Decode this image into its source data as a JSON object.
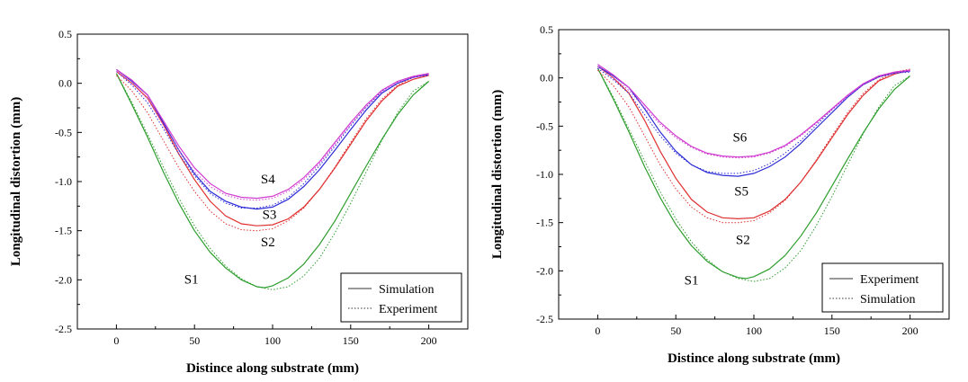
{
  "chart_data": [
    {
      "type": "line",
      "xlabel": "Distince along substrate (mm)",
      "ylabel": "Longitudinal distortion (mm)",
      "xlim": [
        -25,
        225
      ],
      "ylim": [
        -2.5,
        0.5
      ],
      "xticks": [
        0,
        50,
        100,
        150,
        200
      ],
      "yticks": [
        0.5,
        0.0,
        -0.5,
        -1.0,
        -1.5,
        -2.0,
        -2.5
      ],
      "xtick_labels": [
        "0",
        "50",
        "100",
        "150",
        "200"
      ],
      "ytick_labels": [
        "0.5",
        "0.0",
        "-0.5",
        "-1.0",
        "-1.5",
        "-2.0",
        "-2.5"
      ],
      "legend": {
        "position": "bottom-right",
        "entries": [
          {
            "label": "Simulation",
            "style": "solid"
          },
          {
            "label": "Experiment",
            "style": "dotted"
          }
        ]
      },
      "annotations": [
        {
          "text": "S4",
          "x": 97,
          "y": -1.02
        },
        {
          "text": "S3",
          "x": 98,
          "y": -1.38
        },
        {
          "text": "S2",
          "x": 97,
          "y": -1.66
        },
        {
          "text": "S1",
          "x": 48,
          "y": -2.04
        }
      ],
      "series": [
        {
          "label": "S1",
          "color": "#2e9e2e",
          "style": "solid",
          "x": [
            0,
            10,
            20,
            30,
            40,
            50,
            60,
            70,
            80,
            90,
            95,
            100,
            110,
            120,
            130,
            140,
            150,
            160,
            170,
            180,
            190,
            200
          ],
          "y": [
            0.1,
            -0.22,
            -0.55,
            -0.9,
            -1.22,
            -1.5,
            -1.72,
            -1.88,
            -2.0,
            -2.07,
            -2.08,
            -2.06,
            -1.98,
            -1.84,
            -1.64,
            -1.4,
            -1.12,
            -0.84,
            -0.57,
            -0.32,
            -0.12,
            0.02
          ]
        },
        {
          "label": "S1",
          "color": "#2e9e2e",
          "style": "dotted",
          "x": [
            0,
            10,
            20,
            30,
            40,
            50,
            60,
            70,
            80,
            90,
            100,
            110,
            120,
            130,
            140,
            150,
            160,
            170,
            180,
            190,
            200
          ],
          "y": [
            0.1,
            -0.2,
            -0.52,
            -0.85,
            -1.17,
            -1.45,
            -1.68,
            -1.86,
            -1.99,
            -2.07,
            -2.1,
            -2.07,
            -1.96,
            -1.78,
            -1.52,
            -1.22,
            -0.9,
            -0.58,
            -0.3,
            -0.08,
            0.02
          ]
        },
        {
          "label": "S2",
          "color": "#e03030",
          "style": "solid",
          "x": [
            0,
            10,
            20,
            30,
            40,
            50,
            60,
            70,
            80,
            90,
            100,
            110,
            120,
            130,
            140,
            150,
            160,
            170,
            180,
            190,
            200
          ],
          "y": [
            0.12,
            0.0,
            -0.15,
            -0.42,
            -0.72,
            -0.98,
            -1.2,
            -1.35,
            -1.43,
            -1.45,
            -1.44,
            -1.38,
            -1.26,
            -1.08,
            -0.86,
            -0.62,
            -0.38,
            -0.18,
            -0.03,
            0.04,
            0.08
          ]
        },
        {
          "label": "S2",
          "color": "#e03030",
          "style": "dotted",
          "x": [
            0,
            10,
            20,
            30,
            40,
            50,
            60,
            70,
            80,
            90,
            100,
            110,
            120,
            130,
            140,
            150,
            160,
            170,
            180,
            190,
            200
          ],
          "y": [
            0.08,
            -0.08,
            -0.3,
            -0.58,
            -0.86,
            -1.1,
            -1.3,
            -1.43,
            -1.49,
            -1.5,
            -1.48,
            -1.4,
            -1.27,
            -1.08,
            -0.85,
            -0.6,
            -0.36,
            -0.16,
            -0.02,
            0.06,
            0.09
          ]
        },
        {
          "label": "S3",
          "color": "#2c2cd6",
          "style": "solid",
          "x": [
            0,
            10,
            20,
            30,
            40,
            50,
            60,
            70,
            80,
            90,
            100,
            110,
            120,
            130,
            140,
            150,
            160,
            170,
            180,
            190,
            200
          ],
          "y": [
            0.14,
            0.02,
            -0.12,
            -0.4,
            -0.68,
            -0.92,
            -1.1,
            -1.2,
            -1.26,
            -1.28,
            -1.26,
            -1.18,
            -1.05,
            -0.88,
            -0.68,
            -0.47,
            -0.27,
            -0.1,
            0.0,
            0.06,
            0.09
          ]
        },
        {
          "label": "S3",
          "color": "#2c2cd6",
          "style": "dotted",
          "x": [
            0,
            10,
            20,
            30,
            40,
            50,
            60,
            70,
            80,
            90,
            100,
            110,
            120,
            130,
            140,
            150,
            160,
            170,
            180,
            190,
            200
          ],
          "y": [
            0.12,
            -0.02,
            -0.2,
            -0.46,
            -0.72,
            -0.94,
            -1.12,
            -1.22,
            -1.27,
            -1.27,
            -1.24,
            -1.16,
            -1.02,
            -0.84,
            -0.64,
            -0.43,
            -0.24,
            -0.08,
            0.02,
            0.07,
            0.08
          ]
        },
        {
          "label": "S4",
          "color": "#d13ad1",
          "style": "solid",
          "x": [
            0,
            10,
            20,
            30,
            40,
            50,
            60,
            70,
            80,
            90,
            100,
            110,
            120,
            130,
            140,
            150,
            160,
            170,
            180,
            190,
            200
          ],
          "y": [
            0.14,
            0.03,
            -0.12,
            -0.38,
            -0.64,
            -0.86,
            -1.02,
            -1.12,
            -1.16,
            -1.17,
            -1.15,
            -1.08,
            -0.96,
            -0.8,
            -0.6,
            -0.4,
            -0.22,
            -0.07,
            0.02,
            0.07,
            0.1
          ]
        },
        {
          "label": "S4",
          "color": "#d13ad1",
          "style": "dotted",
          "x": [
            0,
            10,
            20,
            30,
            40,
            50,
            60,
            70,
            80,
            90,
            100,
            110,
            120,
            130,
            140,
            150,
            160,
            170,
            180,
            190,
            200
          ],
          "y": [
            0.12,
            0.0,
            -0.16,
            -0.42,
            -0.68,
            -0.9,
            -1.05,
            -1.14,
            -1.18,
            -1.19,
            -1.17,
            -1.1,
            -0.98,
            -0.82,
            -0.62,
            -0.42,
            -0.24,
            -0.09,
            0.01,
            0.06,
            0.09
          ]
        }
      ]
    },
    {
      "type": "line",
      "xlabel": "Distince along substrate (mm)",
      "ylabel": "Longitudinal distortion (mm)",
      "xlim": [
        -25,
        225
      ],
      "ylim": [
        -2.5,
        0.5
      ],
      "xticks": [
        0,
        50,
        100,
        150,
        200
      ],
      "yticks": [
        0.5,
        0.0,
        -0.5,
        -1.0,
        -1.5,
        -2.0,
        -2.5
      ],
      "xtick_labels": [
        "0",
        "50",
        "100",
        "150",
        "200"
      ],
      "ytick_labels": [
        "0.5",
        "0.0",
        "-0.5",
        "-1.0",
        "-1.5",
        "-2.0",
        "-2.5"
      ],
      "legend": {
        "position": "bottom-right",
        "entries": [
          {
            "label": "Experiment",
            "style": "solid"
          },
          {
            "label": "Simulation",
            "style": "dotted"
          }
        ]
      },
      "annotations": [
        {
          "text": "S6",
          "x": 91,
          "y": -0.66
        },
        {
          "text": "S5",
          "x": 92,
          "y": -1.22
        },
        {
          "text": "S2",
          "x": 93,
          "y": -1.72
        },
        {
          "text": "S1",
          "x": 60,
          "y": -2.14
        }
      ],
      "series": [
        {
          "label": "S1",
          "color": "#2e9e2e",
          "style": "solid",
          "x": [
            0,
            10,
            20,
            30,
            40,
            50,
            60,
            70,
            80,
            90,
            95,
            100,
            110,
            120,
            130,
            140,
            150,
            160,
            170,
            180,
            190,
            200
          ],
          "y": [
            0.1,
            -0.22,
            -0.56,
            -0.92,
            -1.24,
            -1.52,
            -1.74,
            -1.9,
            -2.01,
            -2.07,
            -2.08,
            -2.06,
            -1.98,
            -1.84,
            -1.64,
            -1.4,
            -1.12,
            -0.84,
            -0.57,
            -0.32,
            -0.12,
            0.02
          ]
        },
        {
          "label": "S1",
          "color": "#2e9e2e",
          "style": "dotted",
          "x": [
            0,
            10,
            20,
            30,
            40,
            50,
            60,
            70,
            80,
            90,
            100,
            110,
            120,
            130,
            140,
            150,
            160,
            170,
            180,
            190,
            200
          ],
          "y": [
            0.1,
            -0.2,
            -0.53,
            -0.86,
            -1.18,
            -1.46,
            -1.7,
            -1.88,
            -2.01,
            -2.08,
            -2.11,
            -2.08,
            -1.97,
            -1.79,
            -1.53,
            -1.23,
            -0.9,
            -0.58,
            -0.3,
            -0.08,
            0.02
          ]
        },
        {
          "label": "S2",
          "color": "#e03030",
          "style": "solid",
          "x": [
            0,
            10,
            20,
            30,
            40,
            50,
            60,
            70,
            80,
            90,
            100,
            110,
            120,
            130,
            140,
            150,
            160,
            170,
            180,
            190,
            200
          ],
          "y": [
            0.12,
            0.0,
            -0.16,
            -0.44,
            -0.76,
            -1.04,
            -1.26,
            -1.39,
            -1.45,
            -1.46,
            -1.45,
            -1.38,
            -1.26,
            -1.08,
            -0.86,
            -0.62,
            -0.38,
            -0.18,
            -0.03,
            0.04,
            0.08
          ]
        },
        {
          "label": "S2",
          "color": "#e03030",
          "style": "dotted",
          "x": [
            0,
            10,
            20,
            30,
            40,
            50,
            60,
            70,
            80,
            90,
            100,
            110,
            120,
            130,
            140,
            150,
            160,
            170,
            180,
            190,
            200
          ],
          "y": [
            0.08,
            -0.08,
            -0.3,
            -0.6,
            -0.9,
            -1.15,
            -1.34,
            -1.45,
            -1.5,
            -1.5,
            -1.48,
            -1.4,
            -1.27,
            -1.08,
            -0.85,
            -0.6,
            -0.36,
            -0.16,
            -0.02,
            0.06,
            0.09
          ]
        },
        {
          "label": "S5",
          "color": "#2c2cd6",
          "style": "solid",
          "x": [
            0,
            10,
            20,
            30,
            40,
            50,
            60,
            70,
            80,
            90,
            100,
            110,
            120,
            130,
            140,
            150,
            160,
            170,
            180,
            190,
            200
          ],
          "y": [
            0.12,
            0.02,
            -0.1,
            -0.32,
            -0.56,
            -0.76,
            -0.9,
            -0.98,
            -1.01,
            -1.02,
            -0.99,
            -0.92,
            -0.82,
            -0.68,
            -0.52,
            -0.36,
            -0.2,
            -0.07,
            0.01,
            0.05,
            0.07
          ]
        },
        {
          "label": "S5",
          "color": "#2c2cd6",
          "style": "dotted",
          "x": [
            0,
            10,
            20,
            30,
            40,
            50,
            60,
            70,
            80,
            90,
            100,
            110,
            120,
            130,
            140,
            150,
            160,
            170,
            180,
            190,
            200
          ],
          "y": [
            0.1,
            -0.02,
            -0.16,
            -0.38,
            -0.6,
            -0.78,
            -0.9,
            -0.97,
            -0.99,
            -0.99,
            -0.96,
            -0.89,
            -0.78,
            -0.65,
            -0.49,
            -0.33,
            -0.18,
            -0.06,
            0.02,
            0.05,
            0.06
          ]
        },
        {
          "label": "S6",
          "color": "#d13ad1",
          "style": "solid",
          "x": [
            0,
            10,
            20,
            30,
            40,
            50,
            60,
            70,
            80,
            90,
            100,
            110,
            120,
            130,
            140,
            150,
            160,
            170,
            180,
            190,
            200
          ],
          "y": [
            0.14,
            0.03,
            -0.1,
            -0.28,
            -0.46,
            -0.6,
            -0.71,
            -0.78,
            -0.81,
            -0.82,
            -0.81,
            -0.77,
            -0.7,
            -0.59,
            -0.46,
            -0.32,
            -0.18,
            -0.06,
            0.02,
            0.06,
            0.08
          ]
        },
        {
          "label": "S6",
          "color": "#d13ad1",
          "style": "dotted",
          "x": [
            0,
            10,
            20,
            30,
            40,
            50,
            60,
            70,
            80,
            90,
            100,
            110,
            120,
            130,
            140,
            150,
            160,
            170,
            180,
            190,
            200
          ],
          "y": [
            0.12,
            0.0,
            -0.13,
            -0.31,
            -0.48,
            -0.62,
            -0.72,
            -0.79,
            -0.82,
            -0.83,
            -0.82,
            -0.78,
            -0.71,
            -0.6,
            -0.47,
            -0.33,
            -0.19,
            -0.07,
            0.01,
            0.05,
            0.07
          ]
        }
      ]
    }
  ]
}
